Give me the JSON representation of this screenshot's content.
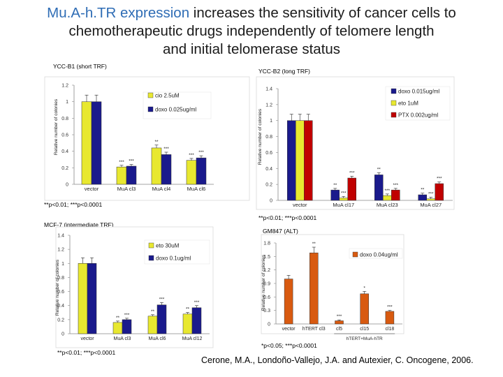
{
  "title": {
    "part1": "Mu.A-h.TR expression",
    "part2": " increases the sensitivity of cancer cells to",
    "line2": "chemotherapeutic drugs independently of telomere length",
    "line3": "and initial telomerase status"
  },
  "colors": {
    "yellow": "#e8e830",
    "navy": "#1a1a8c",
    "red": "#c00000",
    "orange": "#d85a10",
    "light_blue": "#5d8fd0"
  },
  "chart_data": [
    {
      "type": "bar",
      "title": "YCC-B1 (short TRF)",
      "ylabel": "Relative number of colonies",
      "ylim": [
        0,
        1.2
      ],
      "yticks": [
        "0",
        "0.2",
        "0.4",
        "0.6",
        "0.8",
        "1",
        "1.2"
      ],
      "categories": [
        "vector",
        "MuA cl3",
        "MuA cl4",
        "MuA cl6"
      ],
      "series": [
        {
          "name": "cio 2.5uM",
          "color": "#e8e830",
          "values": [
            1.0,
            0.21,
            0.44,
            0.29
          ],
          "labels": [
            "",
            "***",
            "**",
            "***"
          ]
        },
        {
          "name": "doxo 0.025ug/ml",
          "color": "#1a1a8c",
          "values": [
            1.0,
            0.22,
            0.36,
            0.32
          ],
          "labels": [
            "",
            "***",
            "***",
            "***"
          ]
        }
      ],
      "footnote": "**p<0.01; ***p<0.0001"
    },
    {
      "type": "bar",
      "title": "YCC-B2 (long TRF)",
      "ylabel": "Relative number of colonies",
      "ylim": [
        0,
        1.4
      ],
      "yticks": [
        "0",
        "0.2",
        "0.4",
        "0.6",
        "0.8",
        "1",
        "1.2",
        "1.4"
      ],
      "categories": [
        "vector",
        "MuA cl17",
        "MuA cl23",
        "MuA cl27"
      ],
      "series": [
        {
          "name": "doxo 0.015ug/ml",
          "color": "#1a1a8c",
          "values": [
            1.0,
            0.13,
            0.32,
            0.07
          ],
          "labels": [
            "",
            "**",
            "**",
            "**"
          ]
        },
        {
          "name": "eto 1uM",
          "color": "#e8e830",
          "values": [
            1.0,
            0.03,
            0.06,
            0.02
          ],
          "labels": [
            "",
            "***",
            "***",
            "***"
          ]
        },
        {
          "name": "PTX 0.002ug/ml",
          "color": "#c00000",
          "values": [
            1.0,
            0.28,
            0.13,
            0.21
          ],
          "labels": [
            "",
            "***",
            "***",
            "***"
          ]
        }
      ],
      "footnote": "**p<0.01; ***p<0.0001"
    },
    {
      "type": "bar",
      "title": "MCF-7 (intermediate TRF)",
      "ylabel": "Relative number of colonies",
      "ylim": [
        0,
        1.4
      ],
      "yticks": [
        "0",
        "0.2",
        "0.4",
        "0.6",
        "0.8",
        "1",
        "1.2",
        "1.4"
      ],
      "categories": [
        "vector",
        "MuA cl3",
        "MuA cl6",
        "MuA cl12"
      ],
      "series": [
        {
          "name": "eto 30uM",
          "color": "#e8e830",
          "values": [
            1.0,
            0.16,
            0.25,
            0.28
          ],
          "labels": [
            "",
            "**",
            "**",
            "**"
          ]
        },
        {
          "name": "doxo 0.1ug/ml",
          "color": "#1a1a8c",
          "values": [
            1.0,
            0.2,
            0.41,
            0.37
          ],
          "labels": [
            "",
            "***",
            "***",
            "***"
          ]
        }
      ],
      "footnote": "**p<0.01; ***p<0.0001"
    },
    {
      "type": "bar",
      "title": "GM847 (ALT)",
      "ylabel": "Relative number of colonies",
      "ylim": [
        0,
        1.8
      ],
      "yticks": [
        "0",
        "0.3",
        "0.6",
        "0.9",
        "1.2",
        "1.5",
        "1.8"
      ],
      "categories": [
        "vector",
        "hTERT cl3",
        "cl5",
        "cl15",
        "cl18"
      ],
      "group_label": "hTERT+MuA-hTR",
      "series": [
        {
          "name": "doxo 0.04ug/ml",
          "color": "#d85a10",
          "values": [
            1.0,
            1.58,
            0.07,
            0.67,
            0.28
          ],
          "labels": [
            "",
            "**",
            "***",
            "*",
            "***"
          ]
        }
      ],
      "footnote": "*p<0.05; ***p<0.0001"
    }
  ],
  "citation": "Cerone, M.A., Londoño-Vallejo, J.A. and Autexier, C. Oncogene, 2006."
}
